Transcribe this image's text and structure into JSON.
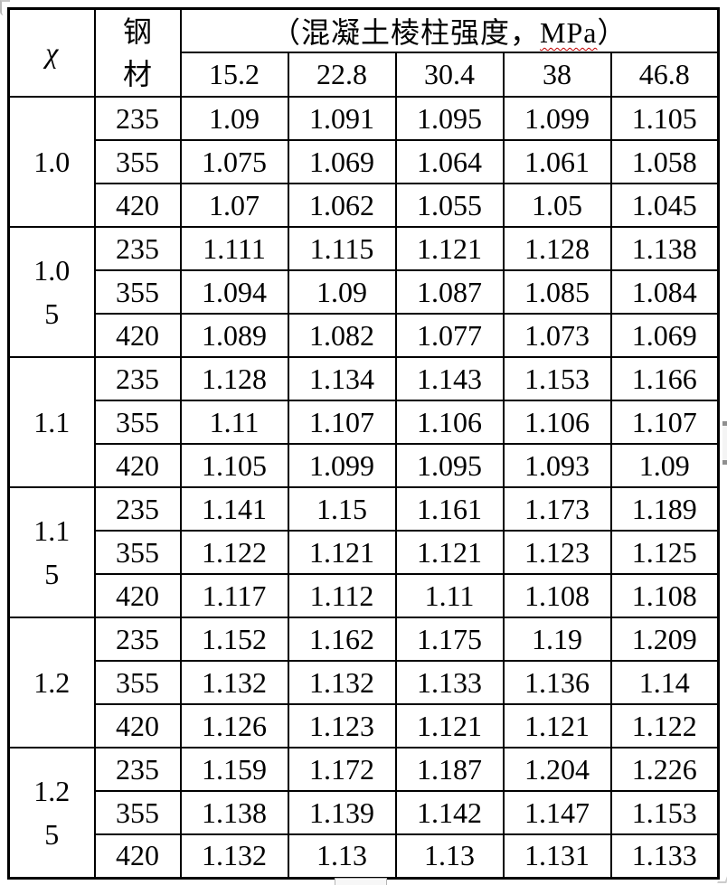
{
  "table": {
    "chi_header": "χ",
    "steel_header": "钢\n材",
    "strength_header": {
      "prefix": "（混凝土棱柱强度，",
      "mpa": "MPa",
      "suffix": "）"
    },
    "strength_levels": [
      "15.2",
      "22.8",
      "30.4",
      "38",
      "46.8"
    ],
    "groups": [
      {
        "chi": "1.0",
        "rows": [
          {
            "steel": "235",
            "values": [
              "1.09",
              "1.091",
              "1.095",
              "1.099",
              "1.105"
            ]
          },
          {
            "steel": "355",
            "values": [
              "1.075",
              "1.069",
              "1.064",
              "1.061",
              "1.058"
            ]
          },
          {
            "steel": "420",
            "values": [
              "1.07",
              "1.062",
              "1.055",
              "1.05",
              "1.045"
            ]
          }
        ]
      },
      {
        "chi": "1.0\n5",
        "rows": [
          {
            "steel": "235",
            "values": [
              "1.111",
              "1.115",
              "1.121",
              "1.128",
              "1.138"
            ]
          },
          {
            "steel": "355",
            "values": [
              "1.094",
              "1.09",
              "1.087",
              "1.085",
              "1.084"
            ]
          },
          {
            "steel": "420",
            "values": [
              "1.089",
              "1.082",
              "1.077",
              "1.073",
              "1.069"
            ]
          }
        ]
      },
      {
        "chi": "1.1",
        "rows": [
          {
            "steel": "235",
            "values": [
              "1.128",
              "1.134",
              "1.143",
              "1.153",
              "1.166"
            ]
          },
          {
            "steel": "355",
            "values": [
              "1.11",
              "1.107",
              "1.106",
              "1.106",
              "1.107"
            ]
          },
          {
            "steel": "420",
            "values": [
              "1.105",
              "1.099",
              "1.095",
              "1.093",
              "1.09"
            ]
          }
        ]
      },
      {
        "chi": "1.1\n5",
        "rows": [
          {
            "steel": "235",
            "values": [
              "1.141",
              "1.15",
              "1.161",
              "1.173",
              "1.189"
            ]
          },
          {
            "steel": "355",
            "values": [
              "1.122",
              "1.121",
              "1.121",
              "1.123",
              "1.125"
            ]
          },
          {
            "steel": "420",
            "values": [
              "1.117",
              "1.112",
              "1.11",
              "1.108",
              "1.108"
            ]
          }
        ]
      },
      {
        "chi": "1.2",
        "rows": [
          {
            "steel": "235",
            "values": [
              "1.152",
              "1.162",
              "1.175",
              "1.19",
              "1.209"
            ]
          },
          {
            "steel": "355",
            "values": [
              "1.132",
              "1.132",
              "1.133",
              "1.136",
              "1.14"
            ]
          },
          {
            "steel": "420",
            "values": [
              "1.126",
              "1.123",
              "1.121",
              "1.121",
              "1.122"
            ]
          }
        ]
      },
      {
        "chi": "1.2\n5",
        "rows": [
          {
            "steel": "235",
            "values": [
              "1.159",
              "1.172",
              "1.187",
              "1.204",
              "1.226"
            ]
          },
          {
            "steel": "355",
            "values": [
              "1.138",
              "1.139",
              "1.142",
              "1.147",
              "1.153"
            ]
          },
          {
            "steel": "420",
            "values": [
              "1.132",
              "1.13",
              "1.13",
              "1.131",
              "1.133"
            ]
          }
        ]
      }
    ]
  }
}
